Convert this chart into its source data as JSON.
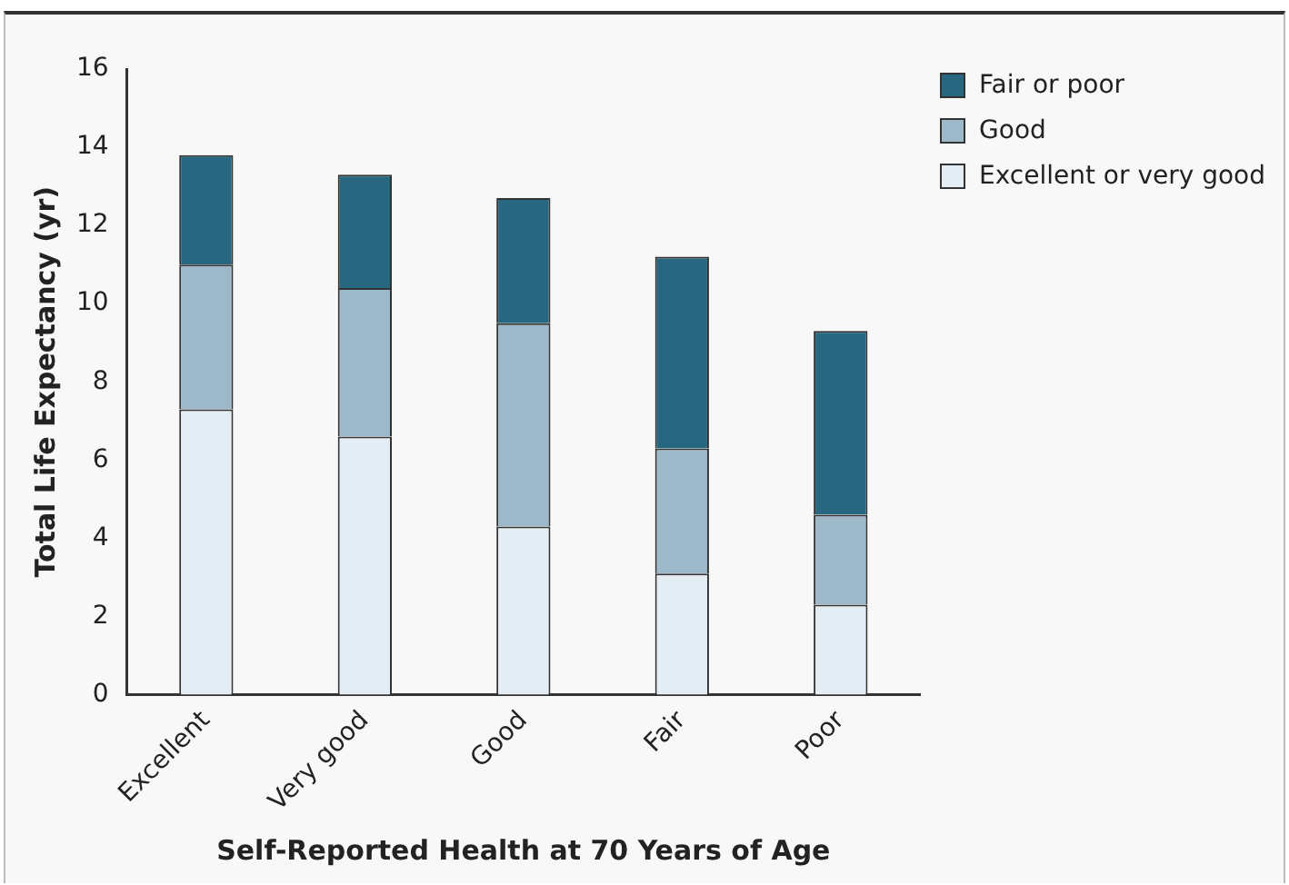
{
  "chart_data": {
    "type": "bar",
    "stacked": true,
    "xlabel": "Self-Reported Health at 70 Years of Age",
    "ylabel": "Total Life Expectancy (yr)",
    "categories": [
      "Excellent",
      "Very good",
      "Good",
      "Fair",
      "Poor"
    ],
    "series": [
      {
        "name": "Excellent or very good",
        "color": "#e4edf3",
        "values": [
          7.3,
          6.6,
          4.3,
          3.1,
          2.3
        ]
      },
      {
        "name": "Good",
        "color": "#9db8c9",
        "values": [
          3.7,
          3.8,
          5.2,
          3.2,
          2.3
        ]
      },
      {
        "name": "Fair or poor",
        "color": "#276880",
        "values": [
          2.8,
          2.9,
          3.2,
          4.9,
          4.7
        ]
      }
    ],
    "ylim": [
      0,
      16
    ],
    "yticks": [
      0,
      2,
      4,
      6,
      8,
      10,
      12,
      14,
      16
    ],
    "grid": false,
    "legend": "top right"
  }
}
